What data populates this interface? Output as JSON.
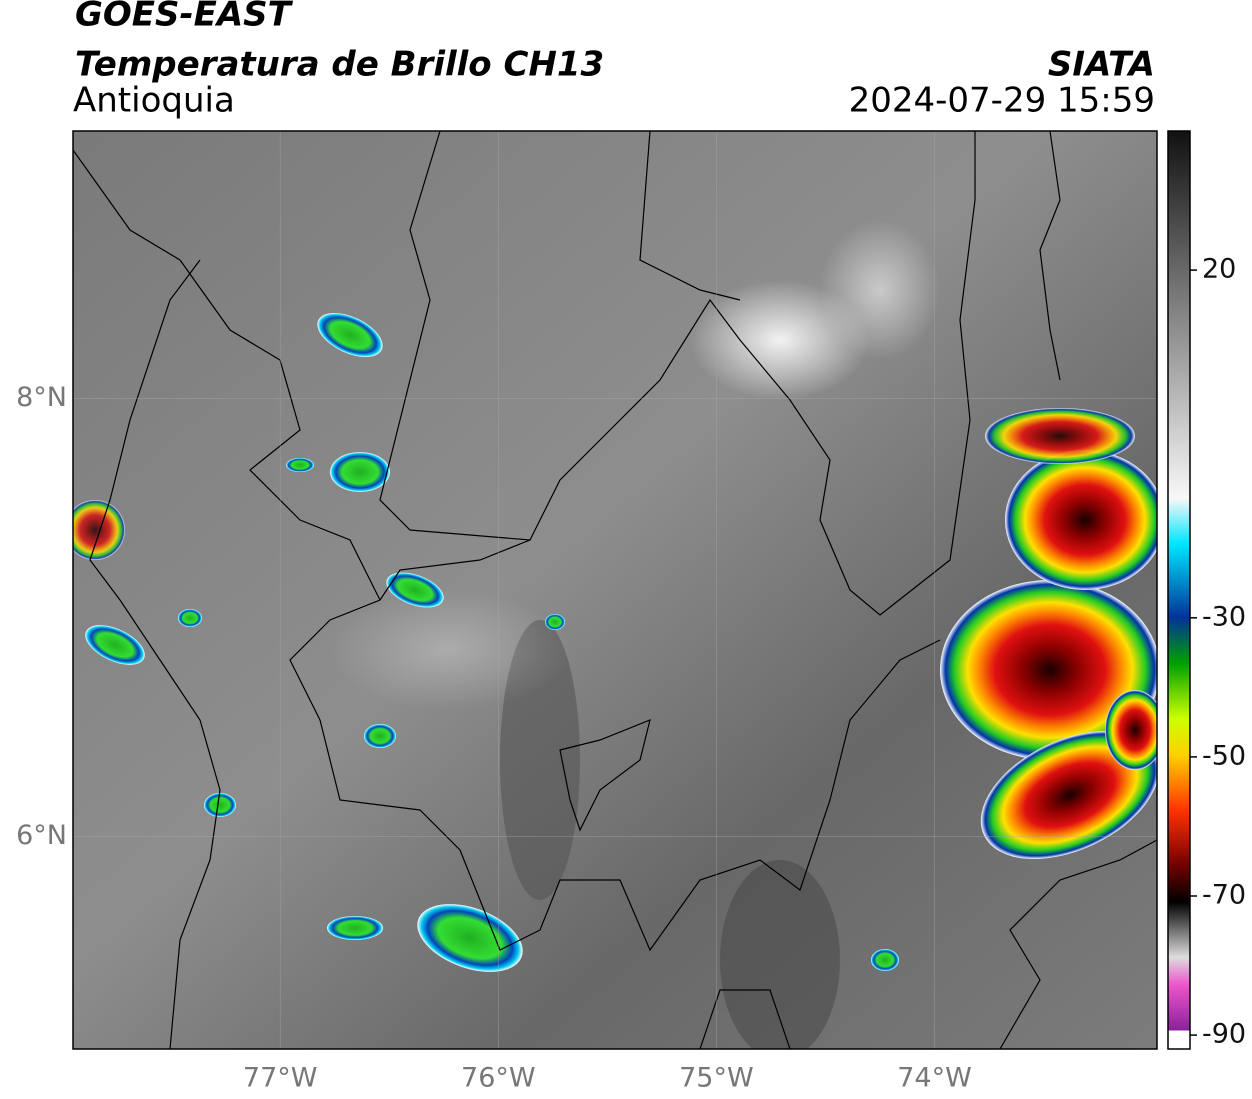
{
  "header": {
    "title": "GOES-EAST",
    "subtitle": "Temperatura de Brillo CH13",
    "region": "Antioquia",
    "source": "SIATA",
    "datetime": "2024-07-29 15:59"
  },
  "map": {
    "xlim": [
      -77.95,
      -72.98
    ],
    "ylim": [
      5.03,
      9.22
    ],
    "xticks": [
      {
        "value": -77,
        "label": "77°W"
      },
      {
        "value": -76,
        "label": "76°W"
      },
      {
        "value": -75,
        "label": "75°W"
      },
      {
        "value": -74,
        "label": "74°W"
      }
    ],
    "yticks": [
      {
        "value": 8,
        "label": "8°N"
      },
      {
        "value": 6,
        "label": "6°N"
      }
    ]
  },
  "colorbar": {
    "lim": [
      -92,
      40
    ],
    "ticks": [
      20,
      -30,
      -50,
      -70,
      -90
    ]
  }
}
